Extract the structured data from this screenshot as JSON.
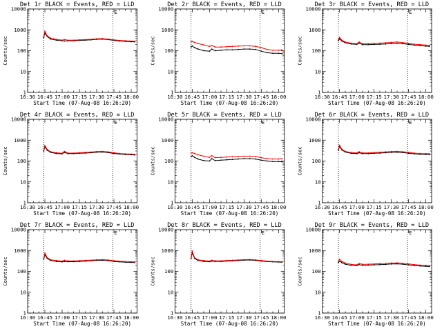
{
  "chart_data": [
    {
      "type": "line",
      "title": "Det 1r BLACK = Events, RED = LLD",
      "xlabel": "Start Time (07-Aug-08 16:26:20)",
      "ylabel": "Counts/sec",
      "yscale": "log",
      "ylim": [
        1,
        10000
      ],
      "xlim": [
        "16:30",
        "18:05"
      ],
      "xticks": [
        "16:30",
        "16:45",
        "17:00",
        "17:15",
        "17:30",
        "17:45",
        "18:00"
      ],
      "yticks": [
        "1",
        "10",
        "100",
        "1000",
        "10000"
      ],
      "corner_mark": "E",
      "vlines": [
        "16:44",
        "17:44"
      ],
      "x": [
        "16:44",
        "16:45",
        "16:47",
        "16:50",
        "16:55",
        "17:00",
        "17:02",
        "17:05",
        "17:10",
        "17:15",
        "17:20",
        "17:25",
        "17:30",
        "17:35",
        "17:40",
        "17:45",
        "17:50",
        "17:55",
        "18:00",
        "18:03"
      ],
      "series": [
        {
          "color": "#000000",
          "values": [
            420,
            700,
            480,
            360,
            320,
            300,
            290,
            300,
            300,
            310,
            320,
            330,
            350,
            360,
            340,
            310,
            290,
            280,
            270,
            265
          ]
        },
        {
          "color": "#ff0000",
          "values": [
            470,
            860,
            520,
            400,
            350,
            320,
            340,
            320,
            320,
            330,
            340,
            350,
            370,
            380,
            360,
            330,
            310,
            300,
            290,
            285
          ]
        }
      ]
    },
    {
      "type": "line",
      "title": "Det 2r BLACK = Events, RED = LLD",
      "xlabel": "Start Time (07-Aug-08 16:26:20)",
      "ylabel": "Counts/sec",
      "yscale": "log",
      "ylim": [
        1,
        10000
      ],
      "xlim": [
        "16:30",
        "18:05"
      ],
      "xticks": [
        "16:30",
        "16:45",
        "17:00",
        "17:15",
        "17:30",
        "17:45",
        "18:00"
      ],
      "yticks": [
        "1",
        "10",
        "100",
        "1000",
        "10000"
      ],
      "corner_mark": "E",
      "vlines": [
        "16:44",
        "17:44"
      ],
      "x": [
        "16:44",
        "16:45",
        "16:47",
        "16:50",
        "16:55",
        "17:00",
        "17:02",
        "17:05",
        "17:10",
        "17:15",
        "17:20",
        "17:25",
        "17:30",
        "17:35",
        "17:40",
        "17:45",
        "17:50",
        "17:55",
        "18:00",
        "18:03"
      ],
      "series": [
        {
          "color": "#000000",
          "values": [
            150,
            170,
            140,
            120,
            100,
            95,
            120,
            100,
            105,
            110,
            110,
            115,
            120,
            120,
            115,
            95,
            80,
            75,
            75,
            72
          ]
        },
        {
          "color": "#ff0000",
          "values": [
            260,
            280,
            250,
            220,
            190,
            160,
            175,
            150,
            150,
            155,
            160,
            165,
            170,
            170,
            160,
            140,
            115,
            105,
            105,
            110
          ]
        }
      ]
    },
    {
      "type": "line",
      "title": "Det 3r BLACK = Events, RED = LLD",
      "xlabel": "Start Time (07-Aug-08 16:26:20)",
      "ylabel": "Counts/sec",
      "yscale": "log",
      "ylim": [
        1,
        10000
      ],
      "xlim": [
        "16:30",
        "18:05"
      ],
      "xticks": [
        "16:30",
        "16:45",
        "17:00",
        "17:15",
        "17:30",
        "17:45",
        "18:00"
      ],
      "yticks": [
        "1",
        "10",
        "100",
        "1000",
        "10000"
      ],
      "corner_mark": "E",
      "vlines": [
        "16:44",
        "17:44"
      ],
      "x": [
        "16:44",
        "16:45",
        "16:47",
        "16:50",
        "16:55",
        "17:00",
        "17:02",
        "17:05",
        "17:10",
        "17:15",
        "17:20",
        "17:25",
        "17:30",
        "17:35",
        "17:40",
        "17:45",
        "17:50",
        "17:55",
        "18:00",
        "18:03"
      ],
      "series": [
        {
          "color": "#000000",
          "values": [
            300,
            370,
            290,
            240,
            210,
            200,
            230,
            195,
            195,
            200,
            205,
            210,
            220,
            225,
            215,
            200,
            185,
            175,
            165,
            160
          ]
        },
        {
          "color": "#ff0000",
          "values": [
            330,
            430,
            320,
            260,
            230,
            215,
            260,
            215,
            215,
            225,
            230,
            240,
            250,
            260,
            245,
            225,
            205,
            195,
            185,
            180
          ]
        }
      ]
    },
    {
      "type": "line",
      "title": "Det 4r BLACK = Events, RED = LLD",
      "xlabel": "Start Time (07-Aug-08 16:26:20)",
      "ylabel": "Counts/sec",
      "yscale": "log",
      "ylim": [
        1,
        10000
      ],
      "xlim": [
        "16:30",
        "18:05"
      ],
      "xticks": [
        "16:30",
        "16:45",
        "17:00",
        "17:15",
        "17:30",
        "17:45",
        "18:00"
      ],
      "yticks": [
        "1",
        "10",
        "100",
        "1000",
        "10000"
      ],
      "corner_mark": "E",
      "vlines": [
        "16:44",
        "17:44"
      ],
      "x": [
        "16:44",
        "16:45",
        "16:47",
        "16:50",
        "16:55",
        "17:00",
        "17:02",
        "17:05",
        "17:10",
        "17:15",
        "17:20",
        "17:25",
        "17:30",
        "17:35",
        "17:40",
        "17:45",
        "17:50",
        "17:55",
        "18:00",
        "18:03"
      ],
      "series": [
        {
          "color": "#000000",
          "values": [
            300,
            480,
            330,
            260,
            230,
            220,
            260,
            225,
            225,
            235,
            240,
            250,
            265,
            270,
            255,
            230,
            215,
            205,
            200,
            195
          ]
        },
        {
          "color": "#ff0000",
          "values": [
            330,
            560,
            360,
            280,
            250,
            235,
            290,
            240,
            240,
            250,
            260,
            270,
            285,
            290,
            275,
            250,
            230,
            220,
            215,
            210
          ]
        }
      ]
    },
    {
      "type": "line",
      "title": "Det 5r BLACK = Events, RED = LLD",
      "xlabel": "Start Time (07-Aug-08 16:26:20)",
      "ylabel": "Counts/sec",
      "yscale": "log",
      "ylim": [
        1,
        10000
      ],
      "xlim": [
        "16:30",
        "18:05"
      ],
      "xticks": [
        "16:30",
        "16:45",
        "17:00",
        "17:15",
        "17:30",
        "17:45",
        "18:00"
      ],
      "yticks": [
        "1",
        "10",
        "100",
        "1000",
        "10000"
      ],
      "corner_mark": "E",
      "vlines": [
        "16:44",
        "17:44"
      ],
      "x": [
        "16:44",
        "16:45",
        "16:47",
        "16:50",
        "16:55",
        "17:00",
        "17:02",
        "17:05",
        "17:10",
        "17:15",
        "17:20",
        "17:25",
        "17:30",
        "17:35",
        "17:40",
        "17:45",
        "17:50",
        "17:55",
        "18:00",
        "18:03"
      ],
      "series": [
        {
          "color": "#000000",
          "values": [
            160,
            180,
            150,
            125,
            105,
            100,
            130,
            105,
            110,
            115,
            120,
            125,
            130,
            130,
            125,
            110,
            100,
            95,
            95,
            92
          ]
        },
        {
          "color": "#ff0000",
          "values": [
            240,
            250,
            230,
            200,
            170,
            150,
            180,
            145,
            150,
            155,
            160,
            165,
            170,
            170,
            165,
            145,
            130,
            125,
            125,
            130
          ]
        }
      ]
    },
    {
      "type": "line",
      "title": "Det 6r BLACK = Events, RED = LLD",
      "xlabel": "Start Time (07-Aug-08 16:26:20)",
      "ylabel": "Counts/sec",
      "yscale": "log",
      "ylim": [
        1,
        10000
      ],
      "xlim": [
        "16:30",
        "18:05"
      ],
      "xticks": [
        "16:30",
        "16:45",
        "17:00",
        "17:15",
        "17:30",
        "17:45",
        "18:00"
      ],
      "yticks": [
        "1",
        "10",
        "100",
        "1000",
        "10000"
      ],
      "corner_mark": "E",
      "vlines": [
        "16:44",
        "17:44"
      ],
      "x": [
        "16:44",
        "16:45",
        "16:47",
        "16:50",
        "16:55",
        "17:00",
        "17:02",
        "17:05",
        "17:10",
        "17:15",
        "17:20",
        "17:25",
        "17:30",
        "17:35",
        "17:40",
        "17:45",
        "17:50",
        "17:55",
        "18:00",
        "18:03"
      ],
      "series": [
        {
          "color": "#000000",
          "values": [
            330,
            500,
            340,
            270,
            235,
            225,
            250,
            225,
            225,
            235,
            240,
            250,
            260,
            265,
            255,
            235,
            220,
            210,
            205,
            200
          ]
        },
        {
          "color": "#ff0000",
          "values": [
            360,
            570,
            370,
            290,
            255,
            245,
            280,
            245,
            245,
            255,
            265,
            275,
            285,
            290,
            280,
            260,
            240,
            230,
            225,
            225
          ]
        }
      ]
    },
    {
      "type": "line",
      "title": "Det 7r BLACK = Events, RED = LLD",
      "xlabel": "Start Time (07-Aug-08 16:26:20)",
      "ylabel": "Counts/sec",
      "yscale": "log",
      "ylim": [
        1,
        10000
      ],
      "xlim": [
        "16:30",
        "18:05"
      ],
      "xticks": [
        "16:30",
        "16:45",
        "17:00",
        "17:15",
        "17:30",
        "17:45",
        "18:00"
      ],
      "yticks": [
        "1",
        "10",
        "100",
        "1000",
        "10000"
      ],
      "corner_mark": "E",
      "vlines": [
        "16:44",
        "17:44"
      ],
      "x": [
        "16:44",
        "16:45",
        "16:47",
        "16:50",
        "16:55",
        "17:00",
        "17:02",
        "17:05",
        "17:10",
        "17:15",
        "17:20",
        "17:25",
        "17:30",
        "17:35",
        "17:40",
        "17:45",
        "17:50",
        "17:55",
        "18:00",
        "18:03"
      ],
      "series": [
        {
          "color": "#000000",
          "values": [
            380,
            620,
            420,
            330,
            300,
            285,
            300,
            290,
            290,
            300,
            310,
            320,
            335,
            340,
            325,
            300,
            285,
            275,
            270,
            265
          ]
        },
        {
          "color": "#ff0000",
          "values": [
            420,
            740,
            460,
            360,
            330,
            310,
            340,
            315,
            315,
            325,
            335,
            345,
            360,
            365,
            350,
            325,
            305,
            295,
            290,
            285
          ]
        }
      ]
    },
    {
      "type": "line",
      "title": "Det 8r BLACK = Events, RED = LLD",
      "xlabel": "Start Time (07-Aug-08 16:26:20)",
      "ylabel": "Counts/sec",
      "yscale": "log",
      "ylim": [
        1,
        10000
      ],
      "xlim": [
        "16:30",
        "18:05"
      ],
      "xticks": [
        "16:30",
        "16:45",
        "17:00",
        "17:15",
        "17:30",
        "17:45",
        "18:00"
      ],
      "yticks": [
        "1",
        "10",
        "100",
        "1000",
        "10000"
      ],
      "corner_mark": "E",
      "vlines": [
        "16:44",
        "17:44"
      ],
      "x": [
        "16:44",
        "16:45",
        "16:47",
        "16:50",
        "16:55",
        "17:00",
        "17:02",
        "17:05",
        "17:10",
        "17:15",
        "17:20",
        "17:25",
        "17:30",
        "17:35",
        "17:40",
        "17:45",
        "17:50",
        "17:55",
        "18:00",
        "18:03"
      ],
      "series": [
        {
          "color": "#000000",
          "values": [
            400,
            780,
            420,
            330,
            300,
            290,
            310,
            300,
            300,
            310,
            320,
            330,
            345,
            350,
            335,
            310,
            295,
            285,
            280,
            275
          ]
        },
        {
          "color": "#ff0000",
          "values": [
            440,
            950,
            460,
            360,
            330,
            310,
            340,
            320,
            320,
            330,
            340,
            350,
            365,
            370,
            355,
            330,
            310,
            300,
            295,
            290
          ]
        }
      ]
    },
    {
      "type": "line",
      "title": "Det 9r BLACK = Events, RED = LLD",
      "xlabel": "Start Time (07-Aug-08 16:26:20)",
      "ylabel": "Counts/sec",
      "yscale": "log",
      "ylim": [
        1,
        10000
      ],
      "xlim": [
        "16:30",
        "18:05"
      ],
      "xticks": [
        "16:30",
        "16:45",
        "17:00",
        "17:15",
        "17:30",
        "17:45",
        "18:00"
      ],
      "yticks": [
        "1",
        "10",
        "100",
        "1000",
        "10000"
      ],
      "corner_mark": "E",
      "vlines": [
        "16:44",
        "17:44"
      ],
      "x": [
        "16:44",
        "16:45",
        "16:47",
        "16:50",
        "16:55",
        "17:00",
        "17:02",
        "17:05",
        "17:10",
        "17:15",
        "17:20",
        "17:25",
        "17:30",
        "17:35",
        "17:40",
        "17:45",
        "17:50",
        "17:55",
        "18:00",
        "18:03"
      ],
      "series": [
        {
          "color": "#000000",
          "values": [
            260,
            310,
            260,
            220,
            195,
            190,
            210,
            195,
            200,
            205,
            210,
            215,
            225,
            230,
            220,
            205,
            190,
            180,
            175,
            170
          ]
        },
        {
          "color": "#ff0000",
          "values": [
            300,
            380,
            300,
            250,
            215,
            205,
            240,
            215,
            220,
            225,
            235,
            240,
            250,
            255,
            245,
            225,
            210,
            200,
            195,
            190
          ]
        }
      ]
    }
  ]
}
